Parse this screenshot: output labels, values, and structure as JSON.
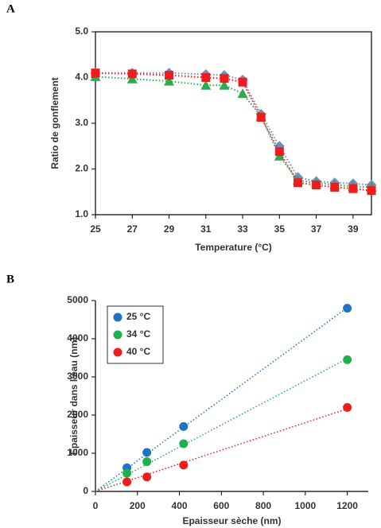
{
  "chart_data": [
    {
      "type": "line",
      "panel_label": "A",
      "x_label": "Temperature (°C)",
      "y_label": "Ratio de gonflement",
      "x": [
        25,
        27,
        29,
        31,
        32,
        33,
        34,
        35,
        36,
        37,
        38,
        39,
        40
      ],
      "xlim": [
        25,
        40
      ],
      "xticks": [
        25,
        27,
        29,
        31,
        33,
        35,
        37,
        39
      ],
      "ylim": [
        1,
        5
      ],
      "yticks": [
        {
          "value": 1,
          "label": "1.0"
        },
        {
          "value": 2,
          "label": "2.0"
        },
        {
          "value": 3,
          "label": "3.0"
        },
        {
          "value": 4,
          "label": "4.0"
        },
        {
          "value": 5,
          "label": "5.0"
        }
      ],
      "frame": true,
      "line_style": "dotted",
      "series": [
        {
          "color": "#6f8fc4",
          "marker": "diamond",
          "values": [
            4.1,
            4.1,
            4.1,
            4.07,
            4.05,
            3.95,
            3.2,
            2.5,
            1.82,
            1.73,
            1.7,
            1.68,
            1.65
          ]
        },
        {
          "color": "#2eaa4f",
          "marker": "triangle",
          "values": [
            4.02,
            3.97,
            3.92,
            3.83,
            3.83,
            3.65,
            3.15,
            2.28,
            1.75,
            1.7,
            1.65,
            1.62,
            1.6
          ]
        },
        {
          "color": "#ee1c1c",
          "marker": "square",
          "values": [
            4.1,
            4.08,
            4.05,
            4.0,
            3.98,
            3.9,
            3.13,
            2.38,
            1.7,
            1.65,
            1.6,
            1.57,
            1.53
          ]
        }
      ]
    },
    {
      "type": "scatter",
      "panel_label": "B",
      "x_label": "Epaisseur sèche (nm)",
      "y_label": "Epaisseur dans l'eau (nm)",
      "x": [
        150,
        245,
        420,
        1200
      ],
      "xlim": [
        0,
        1300
      ],
      "xticks": [
        0,
        200,
        400,
        600,
        800,
        1000,
        1200
      ],
      "ylim": [
        0,
        5000
      ],
      "yticks": [
        0,
        1000,
        2000,
        3000,
        4000,
        5000
      ],
      "frame": false,
      "trendline": true,
      "legend": "upper left",
      "series": [
        {
          "name": "25 °C",
          "color": "#1f73c6",
          "marker": "circle",
          "values": [
            620,
            1020,
            1700,
            4800
          ]
        },
        {
          "name": "34 °C",
          "color": "#1fb04c",
          "marker": "circle",
          "values": [
            480,
            780,
            1250,
            3450
          ]
        },
        {
          "name": "40 °C",
          "color": "#ee1c1c",
          "marker": "circle",
          "values": [
            250,
            380,
            690,
            2200
          ]
        }
      ]
    }
  ]
}
